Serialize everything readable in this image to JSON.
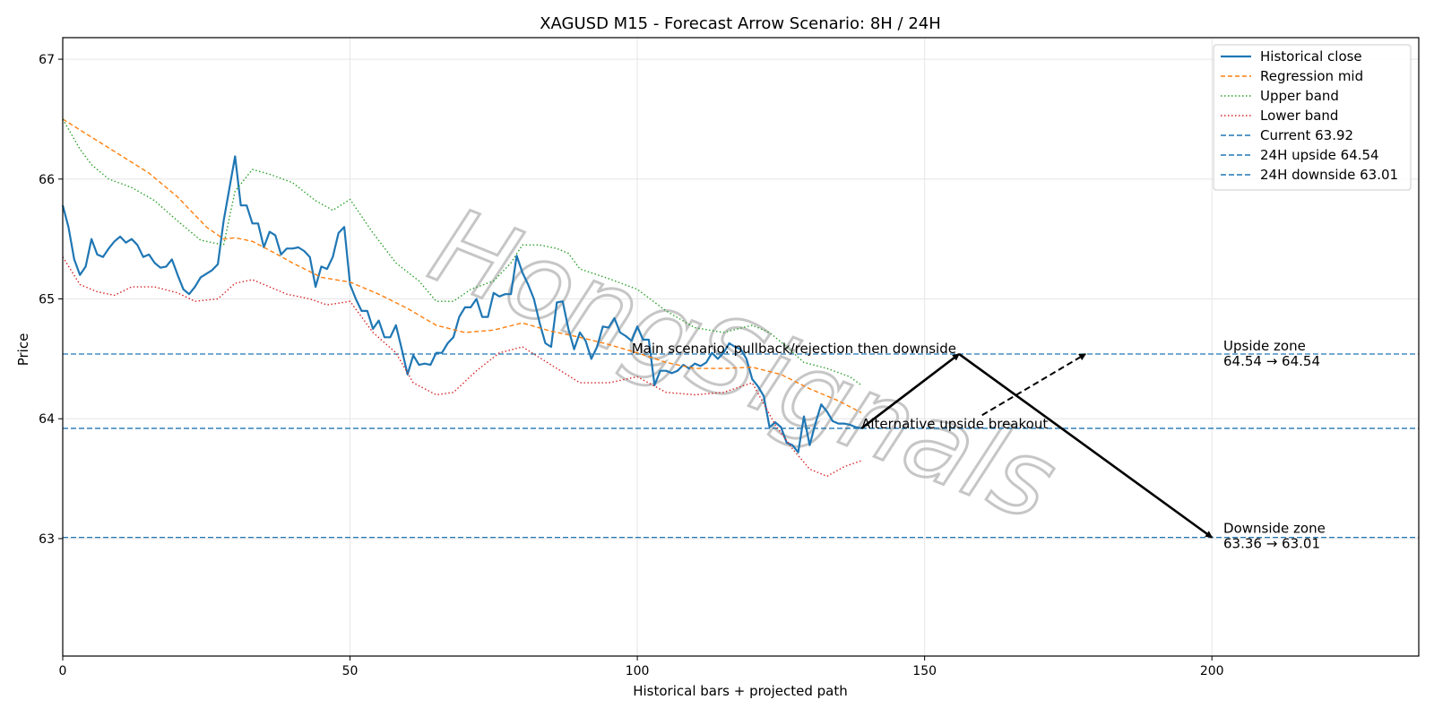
{
  "chart_data": {
    "type": "line",
    "title": "XAGUSD M15 - Forecast Arrow Scenario: 8H / 24H",
    "xlabel": "Historical bars + projected path",
    "ylabel": "Price",
    "xlim": [
      0,
      236
    ],
    "ylim": [
      62.02,
      67.18
    ],
    "xticks": [
      0,
      50,
      100,
      150,
      200
    ],
    "yticks": [
      63,
      64,
      65,
      66,
      67
    ],
    "grid": true,
    "legend_position": "top-right",
    "colors": {
      "close": "#1f77b4",
      "regression": "#ff7f0e",
      "upper": "#2ca02c",
      "lower": "#d62728",
      "levels": "#1f77b4",
      "arrows": "#000000",
      "watermark": "#bdbdbd"
    },
    "series": [
      {
        "name": "Historical close",
        "style": "solid",
        "points": [
          [
            0,
            65.78
          ],
          [
            1,
            65.6
          ],
          [
            2,
            65.33
          ],
          [
            3,
            65.2
          ],
          [
            4,
            65.27
          ],
          [
            5,
            65.5
          ],
          [
            6,
            65.37
          ],
          [
            7,
            65.35
          ],
          [
            8,
            65.42
          ],
          [
            9,
            65.48
          ],
          [
            10,
            65.52
          ],
          [
            11,
            65.47
          ],
          [
            12,
            65.5
          ],
          [
            13,
            65.45
          ],
          [
            14,
            65.35
          ],
          [
            15,
            65.37
          ],
          [
            16,
            65.3
          ],
          [
            17,
            65.26
          ],
          [
            18,
            65.27
          ],
          [
            19,
            65.33
          ],
          [
            20,
            65.2
          ],
          [
            21,
            65.08
          ],
          [
            22,
            65.04
          ],
          [
            23,
            65.1
          ],
          [
            24,
            65.18
          ],
          [
            25,
            65.21
          ],
          [
            26,
            65.24
          ],
          [
            27,
            65.29
          ],
          [
            28,
            65.65
          ],
          [
            29,
            65.92
          ],
          [
            30,
            66.19
          ],
          [
            31,
            65.78
          ],
          [
            32,
            65.78
          ],
          [
            33,
            65.63
          ],
          [
            34,
            65.63
          ],
          [
            35,
            65.43
          ],
          [
            36,
            65.56
          ],
          [
            37,
            65.53
          ],
          [
            38,
            65.37
          ],
          [
            39,
            65.42
          ],
          [
            40,
            65.42
          ],
          [
            41,
            65.43
          ],
          [
            42,
            65.4
          ],
          [
            43,
            65.35
          ],
          [
            44,
            65.1
          ],
          [
            45,
            65.27
          ],
          [
            46,
            65.25
          ],
          [
            47,
            65.35
          ],
          [
            48,
            65.55
          ],
          [
            49,
            65.6
          ],
          [
            50,
            65.12
          ],
          [
            51,
            65.0
          ],
          [
            52,
            64.9
          ],
          [
            53,
            64.9
          ],
          [
            54,
            64.75
          ],
          [
            55,
            64.82
          ],
          [
            56,
            64.68
          ],
          [
            57,
            64.68
          ],
          [
            58,
            64.78
          ],
          [
            59,
            64.58
          ],
          [
            60,
            64.37
          ],
          [
            61,
            64.53
          ],
          [
            62,
            64.45
          ],
          [
            63,
            64.46
          ],
          [
            64,
            64.45
          ],
          [
            65,
            64.55
          ],
          [
            66,
            64.55
          ],
          [
            67,
            64.63
          ],
          [
            68,
            64.68
          ],
          [
            69,
            64.85
          ],
          [
            70,
            64.93
          ],
          [
            71,
            64.93
          ],
          [
            72,
            65.0
          ],
          [
            73,
            64.85
          ],
          [
            74,
            64.85
          ],
          [
            75,
            65.05
          ],
          [
            76,
            65.02
          ],
          [
            77,
            65.04
          ],
          [
            78,
            65.04
          ],
          [
            79,
            65.36
          ],
          [
            80,
            65.22
          ],
          [
            81,
            65.12
          ],
          [
            82,
            65.0
          ],
          [
            83,
            64.8
          ],
          [
            84,
            64.63
          ],
          [
            85,
            64.6
          ],
          [
            86,
            64.97
          ],
          [
            87,
            64.98
          ],
          [
            88,
            64.75
          ],
          [
            89,
            64.58
          ],
          [
            90,
            64.72
          ],
          [
            91,
            64.65
          ],
          [
            92,
            64.5
          ],
          [
            93,
            64.6
          ],
          [
            94,
            64.77
          ],
          [
            95,
            64.76
          ],
          [
            96,
            64.84
          ],
          [
            97,
            64.72
          ],
          [
            98,
            64.69
          ],
          [
            99,
            64.65
          ],
          [
            100,
            64.77
          ],
          [
            101,
            64.66
          ],
          [
            102,
            64.66
          ],
          [
            103,
            64.28
          ],
          [
            104,
            64.4
          ],
          [
            105,
            64.4
          ],
          [
            106,
            64.38
          ],
          [
            107,
            64.4
          ],
          [
            108,
            64.45
          ],
          [
            109,
            64.42
          ],
          [
            110,
            64.46
          ],
          [
            111,
            64.44
          ],
          [
            112,
            64.47
          ],
          [
            113,
            64.55
          ],
          [
            114,
            64.5
          ],
          [
            115,
            64.55
          ],
          [
            116,
            64.63
          ],
          [
            117,
            64.6
          ],
          [
            118,
            64.58
          ],
          [
            119,
            64.5
          ],
          [
            120,
            64.33
          ],
          [
            121,
            64.27
          ],
          [
            122,
            64.19
          ],
          [
            123,
            63.93
          ],
          [
            124,
            63.97
          ],
          [
            125,
            63.93
          ],
          [
            126,
            63.8
          ],
          [
            127,
            63.78
          ],
          [
            128,
            63.72
          ],
          [
            129,
            64.02
          ],
          [
            130,
            63.78
          ],
          [
            131,
            63.96
          ],
          [
            132,
            64.12
          ],
          [
            133,
            64.06
          ],
          [
            134,
            63.98
          ],
          [
            135,
            63.96
          ],
          [
            136,
            63.96
          ],
          [
            137,
            63.95
          ],
          [
            138,
            63.93
          ],
          [
            139,
            63.92
          ]
        ]
      },
      {
        "name": "Regression mid",
        "style": "dashed",
        "points": [
          [
            0,
            66.5
          ],
          [
            5,
            66.35
          ],
          [
            10,
            66.2
          ],
          [
            15,
            66.05
          ],
          [
            20,
            65.85
          ],
          [
            25,
            65.6
          ],
          [
            28,
            65.5
          ],
          [
            30,
            65.51
          ],
          [
            33,
            65.48
          ],
          [
            37,
            65.38
          ],
          [
            40,
            65.3
          ],
          [
            45,
            65.18
          ],
          [
            50,
            65.14
          ],
          [
            55,
            65.04
          ],
          [
            60,
            64.92
          ],
          [
            65,
            64.78
          ],
          [
            70,
            64.72
          ],
          [
            75,
            64.74
          ],
          [
            80,
            64.8
          ],
          [
            85,
            64.73
          ],
          [
            90,
            64.68
          ],
          [
            95,
            64.62
          ],
          [
            100,
            64.55
          ],
          [
            105,
            64.47
          ],
          [
            110,
            64.42
          ],
          [
            115,
            64.42
          ],
          [
            120,
            64.43
          ],
          [
            125,
            64.37
          ],
          [
            130,
            64.25
          ],
          [
            135,
            64.15
          ],
          [
            139,
            64.05
          ]
        ]
      },
      {
        "name": "Upper band",
        "style": "dotted",
        "points": [
          [
            0,
            66.5
          ],
          [
            3,
            66.25
          ],
          [
            5,
            66.12
          ],
          [
            8,
            66.0
          ],
          [
            12,
            65.93
          ],
          [
            16,
            65.82
          ],
          [
            20,
            65.65
          ],
          [
            24,
            65.49
          ],
          [
            28,
            65.45
          ],
          [
            30,
            65.9
          ],
          [
            33,
            66.08
          ],
          [
            36,
            66.04
          ],
          [
            40,
            65.97
          ],
          [
            44,
            65.82
          ],
          [
            47,
            65.74
          ],
          [
            50,
            65.83
          ],
          [
            54,
            65.55
          ],
          [
            58,
            65.3
          ],
          [
            62,
            65.15
          ],
          [
            65,
            64.98
          ],
          [
            68,
            64.98
          ],
          [
            71,
            65.08
          ],
          [
            75,
            65.15
          ],
          [
            78,
            65.3
          ],
          [
            80,
            65.45
          ],
          [
            83,
            65.45
          ],
          [
            86,
            65.42
          ],
          [
            88,
            65.38
          ],
          [
            90,
            65.25
          ],
          [
            95,
            65.17
          ],
          [
            100,
            65.08
          ],
          [
            105,
            64.9
          ],
          [
            110,
            64.76
          ],
          [
            115,
            64.72
          ],
          [
            120,
            64.78
          ],
          [
            123,
            64.72
          ],
          [
            126,
            64.6
          ],
          [
            129,
            64.47
          ],
          [
            133,
            64.42
          ],
          [
            137,
            64.35
          ],
          [
            139,
            64.28
          ]
        ]
      },
      {
        "name": "Lower band",
        "style": "dotted",
        "points": [
          [
            0,
            65.35
          ],
          [
            3,
            65.12
          ],
          [
            6,
            65.06
          ],
          [
            9,
            65.03
          ],
          [
            12,
            65.1
          ],
          [
            16,
            65.1
          ],
          [
            20,
            65.05
          ],
          [
            23,
            64.98
          ],
          [
            27,
            65.0
          ],
          [
            30,
            65.13
          ],
          [
            33,
            65.16
          ],
          [
            36,
            65.1
          ],
          [
            39,
            65.04
          ],
          [
            43,
            65.0
          ],
          [
            46,
            64.95
          ],
          [
            50,
            64.98
          ],
          [
            54,
            64.72
          ],
          [
            58,
            64.55
          ],
          [
            61,
            64.3
          ],
          [
            65,
            64.2
          ],
          [
            68,
            64.22
          ],
          [
            72,
            64.4
          ],
          [
            76,
            64.55
          ],
          [
            80,
            64.6
          ],
          [
            85,
            64.45
          ],
          [
            90,
            64.3
          ],
          [
            95,
            64.3
          ],
          [
            100,
            64.35
          ],
          [
            105,
            64.22
          ],
          [
            110,
            64.2
          ],
          [
            115,
            64.22
          ],
          [
            120,
            64.3
          ],
          [
            124,
            63.95
          ],
          [
            127,
            63.75
          ],
          [
            130,
            63.58
          ],
          [
            133,
            63.52
          ],
          [
            136,
            63.6
          ],
          [
            139,
            63.65
          ]
        ]
      }
    ],
    "hlines": [
      {
        "name": "Current 63.92",
        "y": 63.92
      },
      {
        "name": "24H upside 64.54",
        "y": 64.54
      },
      {
        "name": "24H downside 63.01",
        "y": 63.01
      }
    ],
    "main_arrows": [
      {
        "from": [
          139,
          63.92
        ],
        "to": [
          156,
          64.54
        ]
      },
      {
        "from": [
          156,
          64.54
        ],
        "to": [
          200,
          63.01
        ]
      }
    ],
    "alt_arrow": {
      "from": [
        160,
        64.03
      ],
      "to": [
        178,
        64.54
      ]
    },
    "annotations": {
      "main_scenario": {
        "text": "Main scenario: pullback/rejection then downside",
        "x": 99,
        "y": 64.54
      },
      "alt_scenario": {
        "text": "Alternative upside breakout",
        "x": 139,
        "y": 63.92
      },
      "upside_title": {
        "text": "Upside zone",
        "x": 202,
        "y": 64.54
      },
      "upside_range": {
        "text": "64.54 → 64.54",
        "x": 202,
        "y": 64.54
      },
      "downside_title": {
        "text": "Downside zone",
        "x": 202,
        "y": 63.01
      },
      "downside_range": {
        "text": "63.36 → 63.01",
        "x": 202,
        "y": 63.01
      }
    },
    "watermark": "HongSignals"
  }
}
